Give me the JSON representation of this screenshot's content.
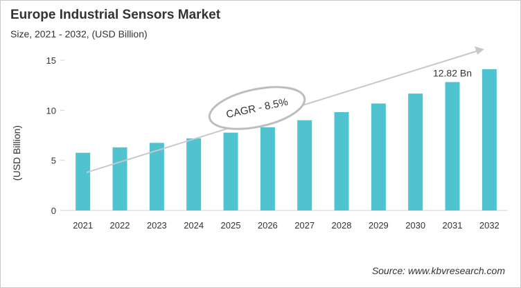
{
  "chart_data": {
    "type": "bar",
    "title": "Europe Industrial Sensors Market",
    "subtitle": "Size, 2021 - 2032, (USD Billion)",
    "xlabel": "",
    "ylabel": "(USD Billion)",
    "categories": [
      "2021",
      "2022",
      "2023",
      "2024",
      "2025",
      "2026",
      "2027",
      "2028",
      "2029",
      "2030",
      "2031",
      "2032"
    ],
    "values": [
      5.76,
      6.3,
      6.75,
      7.2,
      7.77,
      8.31,
      9.01,
      9.82,
      10.68,
      11.67,
      12.82,
      14.11
    ],
    "ylim": [
      0,
      15
    ],
    "yticks": [
      "0",
      "5",
      "10",
      "15"
    ],
    "grid": false,
    "bar_color": "#4fc3cf",
    "annotations": {
      "data_label": {
        "category": "2031",
        "text": "12.82 Bn"
      },
      "cagr": "CAGR - 8.5%"
    },
    "source": "Source: www.kbvresearch.com"
  }
}
